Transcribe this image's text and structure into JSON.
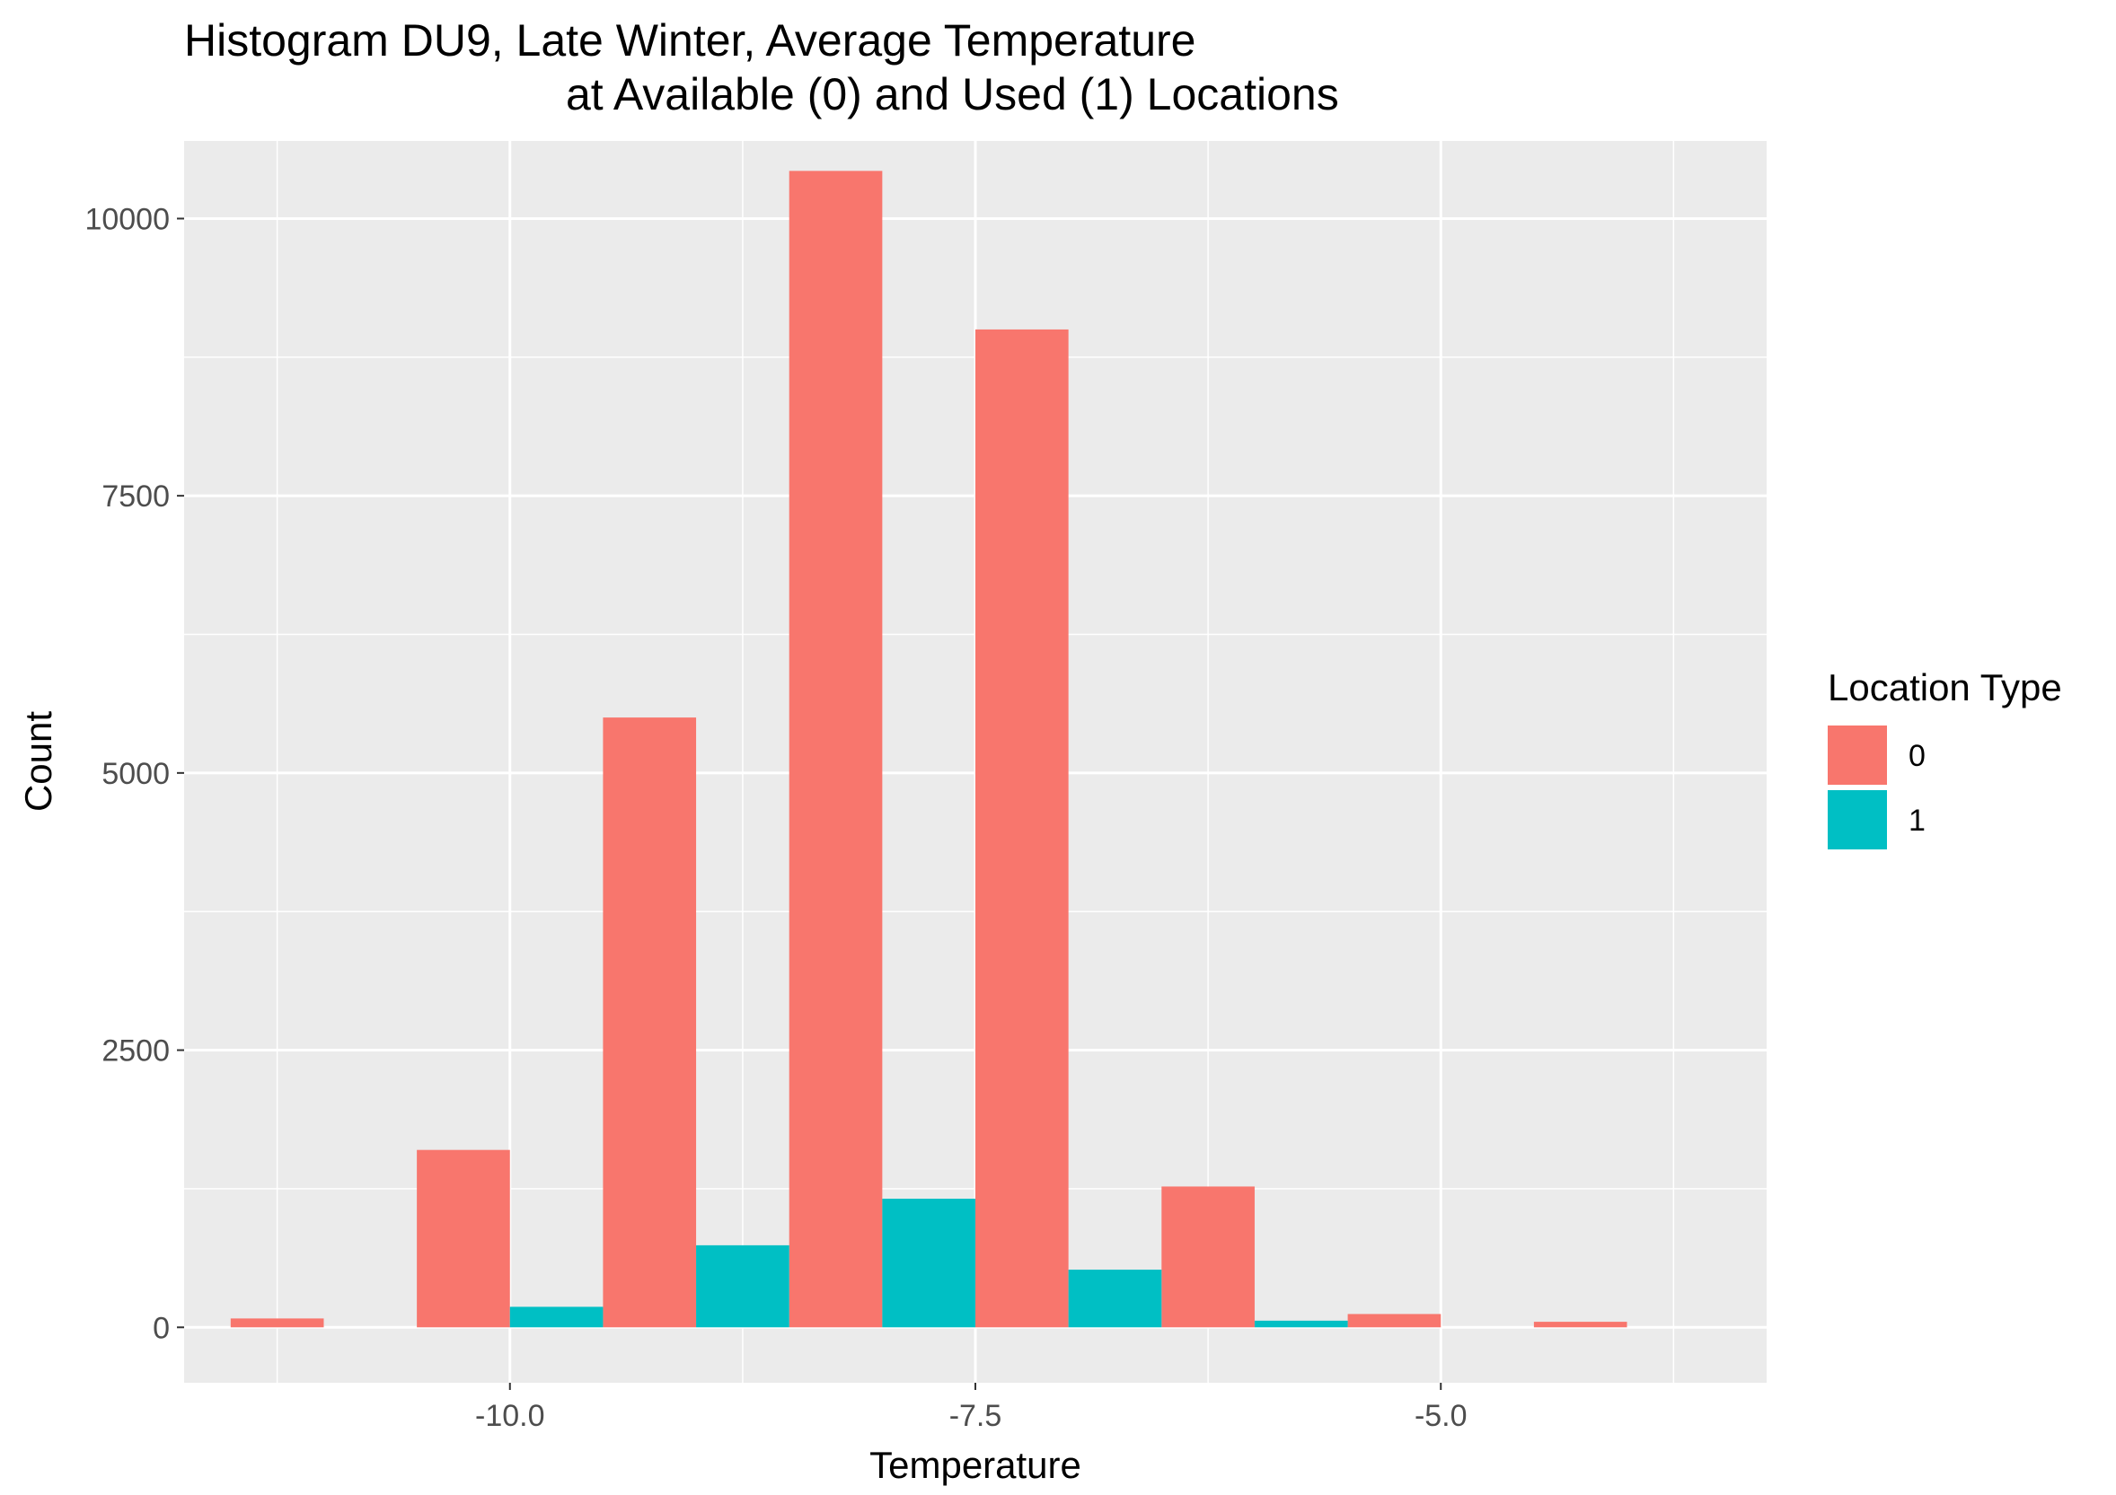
{
  "chart_data": {
    "type": "bar",
    "title_line1": "Histogram DU9, Late Winter, Average Temperature",
    "title_line2": "at Available (0) and Used (1) Locations",
    "xlabel": "Temperature",
    "ylabel": "Count",
    "x_bin_centers": [
      -11.0,
      -10.0,
      -9.0,
      -8.0,
      -7.0,
      -6.0,
      -5.0,
      -4.0
    ],
    "bin_width": 1.0,
    "xlim": [
      -11.75,
      -3.25
    ],
    "ylim": [
      -500,
      10700
    ],
    "x_ticks": [
      -10.0,
      -7.5,
      -5.0
    ],
    "x_tick_labels": [
      "-10.0",
      "-7.5",
      "-5.0"
    ],
    "y_ticks": [
      0,
      2500,
      5000,
      7500,
      10000
    ],
    "y_tick_labels": [
      "0",
      "2500",
      "5000",
      "7500",
      "10000"
    ],
    "grid": true,
    "legend_position": "right",
    "legend_title": "Location Type",
    "series": [
      {
        "name": "0",
        "color": "#F8766D",
        "values": [
          80,
          1600,
          5500,
          10430,
          9000,
          1270,
          120,
          50
        ]
      },
      {
        "name": "1",
        "color": "#00BFC4",
        "values": [
          0,
          185,
          740,
          1160,
          520,
          60,
          0,
          0
        ]
      }
    ]
  }
}
